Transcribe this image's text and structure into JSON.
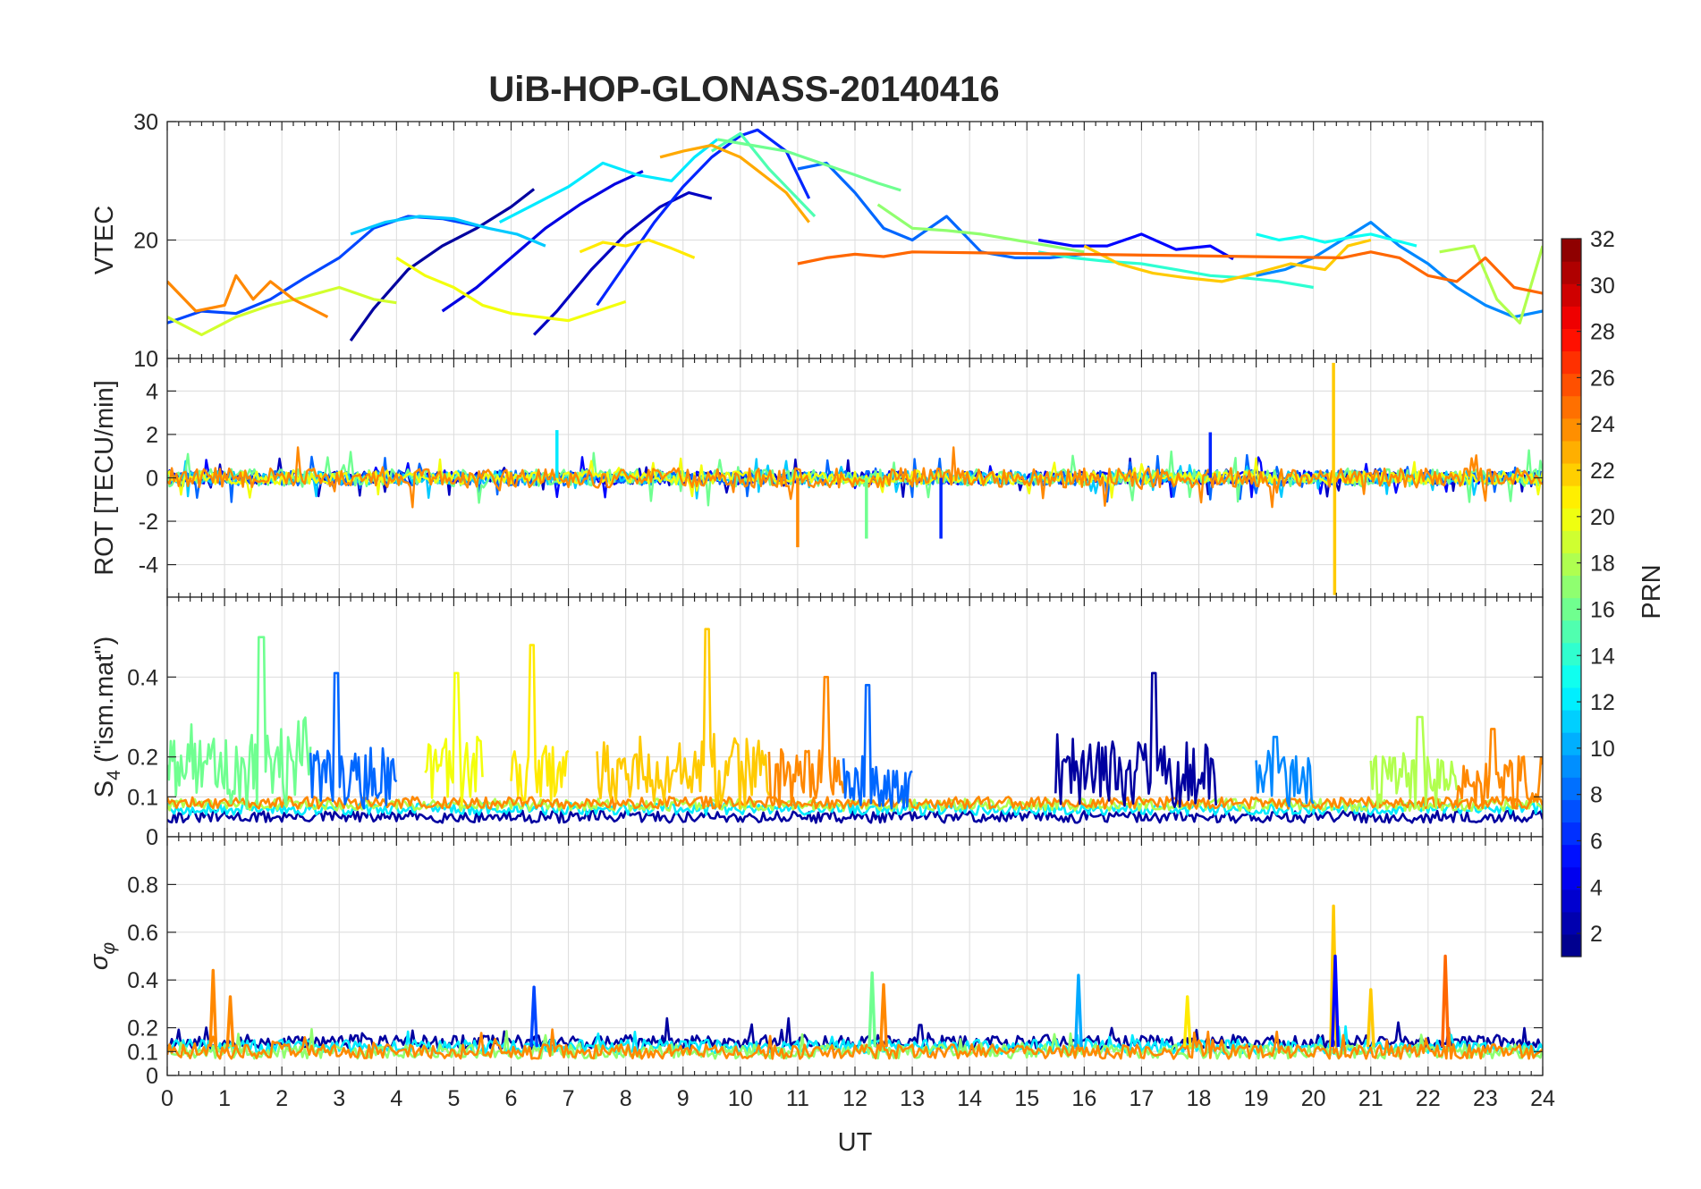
{
  "chart_data": {
    "type": "line",
    "title": "UiB-HOP-GLONASS-20140416",
    "xlabel": "UT",
    "xlim": [
      0,
      24
    ],
    "x_ticks": [
      0,
      1,
      2,
      3,
      4,
      5,
      6,
      7,
      8,
      9,
      10,
      11,
      12,
      13,
      14,
      15,
      16,
      17,
      18,
      19,
      20,
      21,
      22,
      23,
      24
    ],
    "grid": true,
    "panels": [
      {
        "id": "vtec",
        "ylabel": "VTEC",
        "ylim": [
          10,
          30
        ],
        "y_ticks": [
          10,
          20,
          30
        ],
        "ytick_labels": [
          "10",
          "20",
          "30"
        ],
        "series": [
          {
            "prn": 2,
            "x": [
              3.2,
              3.6,
              4.2,
              4.8,
              5.4,
              6.0,
              6.4
            ],
            "y": [
              11.5,
              14.2,
              17.5,
              19.5,
              21.0,
              22.8,
              24.3
            ]
          },
          {
            "prn": 3,
            "x": [
              6.4,
              6.8,
              7.4,
              8.0,
              8.6,
              9.1,
              9.5
            ],
            "y": [
              12.0,
              14.0,
              17.5,
              20.5,
              22.8,
              24.0,
              23.5
            ]
          },
          {
            "prn": 4,
            "x": [
              4.8,
              5.4,
              6.0,
              6.6,
              7.2,
              7.8,
              8.3
            ],
            "y": [
              14.0,
              16.0,
              18.5,
              21.0,
              23.0,
              24.7,
              25.8
            ]
          },
          {
            "prn": 5,
            "x": [
              15.2,
              15.8,
              16.4,
              17.0,
              17.6,
              18.2,
              18.6
            ],
            "y": [
              20.0,
              19.5,
              19.5,
              20.5,
              19.2,
              19.5,
              18.4
            ]
          },
          {
            "prn": 6,
            "x": [
              7.5,
              8.0,
              8.5,
              9.0,
              9.5,
              10.0,
              10.3,
              10.8,
              11.2
            ],
            "y": [
              14.5,
              18.0,
              21.5,
              24.5,
              27.0,
              28.8,
              29.3,
              27.5,
              23.5
            ]
          },
          {
            "prn": 7,
            "x": [
              0.0,
              0.6,
              1.2,
              1.8,
              2.4,
              3.0,
              3.6,
              4.2,
              4.8,
              5.4
            ],
            "y": [
              13.0,
              14.0,
              13.8,
              15.0,
              16.8,
              18.5,
              21.0,
              22.0,
              21.8,
              21.2
            ]
          },
          {
            "prn": 8,
            "x": [
              11.0,
              11.5,
              12.0,
              12.5,
              13.0,
              13.6,
              14.2,
              14.8,
              15.4,
              16.0
            ],
            "y": [
              26.0,
              26.5,
              24.0,
              21.0,
              20.0,
              22.0,
              19.0,
              18.5,
              18.5,
              18.8
            ]
          },
          {
            "prn": 9,
            "x": [
              19.0,
              19.5,
              20.0,
              20.5,
              21.0,
              21.5,
              22.0,
              22.5,
              23.0,
              23.5,
              24.0
            ],
            "y": [
              17.0,
              17.5,
              18.5,
              20.0,
              21.5,
              19.5,
              18.0,
              16.0,
              14.5,
              13.5,
              14.0
            ]
          },
          {
            "prn": 11,
            "x": [
              3.2,
              3.8,
              4.4,
              5.0,
              5.6,
              6.1,
              6.6
            ],
            "y": [
              20.5,
              21.5,
              22.0,
              21.8,
              21.0,
              20.5,
              19.5
            ]
          },
          {
            "prn": 12,
            "x": [
              5.8,
              6.4,
              7.0,
              7.6,
              8.2,
              8.8,
              9.2,
              9.6
            ],
            "y": [
              21.5,
              23.0,
              24.5,
              26.5,
              25.5,
              25.0,
              27.0,
              28.5
            ]
          },
          {
            "prn": 13,
            "x": [
              19.0,
              19.4,
              19.8,
              20.2,
              20.6,
              21.0,
              21.4,
              21.8
            ],
            "y": [
              20.5,
              20.0,
              20.3,
              19.8,
              20.2,
              20.5,
              20.0,
              19.5
            ]
          },
          {
            "prn": 14,
            "x": [
              15.2,
              15.8,
              16.4,
              17.0,
              17.6,
              18.2,
              18.8,
              19.4,
              20.0
            ],
            "y": [
              19.0,
              18.5,
              18.2,
              18.0,
              17.5,
              17.0,
              16.8,
              16.5,
              16.0
            ]
          },
          {
            "prn": 15,
            "x": [
              9.5,
              10.0,
              10.5,
              11.0,
              11.3
            ],
            "y": [
              27.5,
              29.0,
              26.0,
              23.5,
              22.0
            ]
          },
          {
            "prn": 16,
            "x": [
              9.6,
              10.2,
              10.8,
              11.4,
              12.0,
              12.4,
              12.8
            ],
            "y": [
              28.5,
              28.0,
              27.5,
              26.5,
              25.5,
              24.8,
              24.2
            ]
          },
          {
            "prn": 17,
            "x": [
              12.4,
              13.0,
              13.6,
              14.2,
              14.8,
              15.4,
              16.0
            ],
            "y": [
              23.0,
              21.0,
              20.8,
              20.5,
              20.0,
              19.5,
              19.0
            ]
          },
          {
            "prn": 18,
            "x": [
              22.2,
              22.8,
              23.2,
              23.6,
              24.0
            ],
            "y": [
              19.0,
              19.5,
              15.0,
              13.0,
              19.5
            ]
          },
          {
            "prn": 19,
            "x": [
              0.0,
              0.6,
              1.2,
              1.8,
              2.4,
              3.0,
              3.6,
              4.0
            ],
            "y": [
              13.5,
              12.0,
              13.5,
              14.5,
              15.2,
              16.0,
              15.0,
              14.7
            ]
          },
          {
            "prn": 20,
            "x": [
              4.0,
              4.5,
              5.0,
              5.5,
              6.0,
              6.5,
              7.0,
              7.5,
              8.0
            ],
            "y": [
              18.5,
              17.0,
              16.0,
              14.5,
              13.8,
              13.5,
              13.2,
              14.0,
              14.8
            ]
          },
          {
            "prn": 21,
            "x": [
              7.2,
              7.6,
              8.0,
              8.4,
              8.8,
              9.2
            ],
            "y": [
              19.0,
              19.8,
              19.5,
              20.0,
              19.3,
              18.5
            ]
          },
          {
            "prn": 22,
            "x": [
              16.0,
              16.6,
              17.2,
              17.8,
              18.4,
              19.0,
              19.6,
              20.2,
              20.6,
              21.0
            ],
            "y": [
              19.5,
              18.0,
              17.2,
              16.8,
              16.5,
              17.2,
              18.0,
              17.5,
              19.5,
              20.0
            ]
          },
          {
            "prn": 23,
            "x": [
              8.6,
              9.0,
              9.5,
              10.0,
              10.4,
              10.8,
              11.2
            ],
            "y": [
              27.0,
              27.5,
              28.0,
              27.0,
              25.5,
              24.0,
              21.5
            ]
          },
          {
            "prn": 24,
            "x": [
              0.0,
              0.5,
              1.0,
              1.2,
              1.5,
              1.8,
              2.2,
              2.6,
              2.8
            ],
            "y": [
              16.5,
              14.0,
              14.5,
              17.0,
              15.0,
              16.5,
              15.0,
              14.0,
              13.5
            ]
          },
          {
            "prn": 25,
            "x": [
              11.0,
              11.5,
              12.0,
              12.5,
              13.0,
              20.5,
              21.0,
              21.5,
              22.0,
              22.5,
              23.0,
              23.5,
              24.0
            ],
            "y": [
              18.0,
              18.5,
              18.8,
              18.6,
              19.0,
              18.5,
              19.0,
              18.5,
              17.0,
              16.5,
              18.5,
              16.0,
              15.5
            ]
          }
        ]
      },
      {
        "id": "rot",
        "ylabel": "ROT [TECU/min]",
        "ylim": [
          -5.5,
          5.5
        ],
        "y_ticks": [
          -4,
          -2,
          0,
          2,
          4
        ],
        "ytick_labels": [
          "-4",
          "-2",
          "0",
          "2",
          "4"
        ],
        "noise_seed": 17,
        "series_scale": [
          {
            "prn": 3,
            "amp": 0.28
          },
          {
            "prn": 5,
            "amp": 0.3
          },
          {
            "prn": 8,
            "amp": 0.35
          },
          {
            "prn": 11,
            "amp": 0.3
          },
          {
            "prn": 16,
            "amp": 0.4
          },
          {
            "prn": 20,
            "amp": 0.3
          },
          {
            "prn": 24,
            "amp": 0.45
          }
        ],
        "spikes": [
          {
            "prn": 22,
            "x": 20.35,
            "value": 5.3
          },
          {
            "prn": 22,
            "x": 20.37,
            "value": -5.4
          },
          {
            "prn": 24,
            "x": 11.0,
            "value": -3.2
          },
          {
            "prn": 6,
            "x": 13.5,
            "value": -2.8
          },
          {
            "prn": 6,
            "x": 18.2,
            "value": 2.1
          },
          {
            "prn": 12,
            "x": 6.8,
            "value": 2.2
          },
          {
            "prn": 16,
            "x": 12.2,
            "value": -2.8
          }
        ]
      },
      {
        "id": "s4",
        "ylabel": "S4 (\"ism.mat\")",
        "ylabel_main": "S",
        "ylabel_sub": "4",
        "ylabel_rest": " (\"ism.mat\")",
        "ylim": [
          0,
          0.6
        ],
        "y_ticks": [
          0,
          0.1,
          0.2,
          0.4
        ],
        "ytick_labels": [
          "0",
          "0.1",
          "0.2",
          "0.4"
        ],
        "noise_seed": 31,
        "activity": [
          {
            "prn": 16,
            "x0": 0.0,
            "x1": 2.5,
            "level": 0.2,
            "peak": 0.5
          },
          {
            "prn": 8,
            "x0": 2.5,
            "x1": 4.0,
            "level": 0.15,
            "peak": 0.41
          },
          {
            "prn": 20,
            "x0": 4.5,
            "x1": 5.5,
            "level": 0.17,
            "peak": 0.41
          },
          {
            "prn": 21,
            "x0": 6.0,
            "x1": 7.0,
            "level": 0.15,
            "peak": 0.48
          },
          {
            "prn": 22,
            "x0": 7.5,
            "x1": 10.5,
            "level": 0.17,
            "peak": 0.52
          },
          {
            "prn": 24,
            "x0": 10.5,
            "x1": 11.8,
            "level": 0.15,
            "peak": 0.4
          },
          {
            "prn": 8,
            "x0": 11.8,
            "x1": 13.0,
            "level": 0.13,
            "peak": 0.38
          },
          {
            "prn": 2,
            "x0": 15.5,
            "x1": 18.3,
            "level": 0.17,
            "peak": 0.41
          },
          {
            "prn": 9,
            "x0": 19.0,
            "x1": 20.0,
            "level": 0.14,
            "peak": 0.25
          },
          {
            "prn": 18,
            "x0": 21.0,
            "x1": 22.5,
            "level": 0.14,
            "peak": 0.3
          },
          {
            "prn": 24,
            "x0": 22.5,
            "x1": 24.0,
            "level": 0.13,
            "peak": 0.27
          }
        ],
        "baseline": [
          {
            "prn": 2,
            "level": 0.05
          },
          {
            "prn": 12,
            "level": 0.07
          },
          {
            "prn": 18,
            "level": 0.08
          },
          {
            "prn": 24,
            "level": 0.085
          }
        ]
      },
      {
        "id": "sigma_phi",
        "ylabel": "σφ",
        "ylabel_main": "σ",
        "ylabel_sub": "φ",
        "ylim": [
          0,
          1
        ],
        "y_ticks": [
          0,
          0.1,
          0.2,
          0.4,
          0.6,
          0.8
        ],
        "ytick_labels": [
          "0",
          "0.1",
          "0.2",
          "0.4",
          "0.6",
          "0.8"
        ],
        "noise_seed": 53,
        "baseline": [
          {
            "prn": 2,
            "level": 0.14
          },
          {
            "prn": 12,
            "level": 0.12
          },
          {
            "prn": 17,
            "level": 0.1
          },
          {
            "prn": 24,
            "level": 0.1
          }
        ],
        "spikes": [
          {
            "prn": 24,
            "x": 0.8,
            "value": 0.44
          },
          {
            "prn": 24,
            "x": 1.1,
            "value": 0.33
          },
          {
            "prn": 7,
            "x": 6.4,
            "value": 0.37
          },
          {
            "prn": 16,
            "x": 12.3,
            "value": 0.43
          },
          {
            "prn": 24,
            "x": 12.5,
            "value": 0.38
          },
          {
            "prn": 10,
            "x": 15.9,
            "value": 0.42
          },
          {
            "prn": 21,
            "x": 17.8,
            "value": 0.33
          },
          {
            "prn": 22,
            "x": 20.35,
            "value": 0.71
          },
          {
            "prn": 5,
            "x": 20.38,
            "value": 0.5
          },
          {
            "prn": 25,
            "x": 22.3,
            "value": 0.5
          },
          {
            "prn": 22,
            "x": 21.0,
            "value": 0.36
          }
        ]
      }
    ],
    "colorbar": {
      "label": "PRN",
      "colormap": "jet",
      "range": [
        1,
        32
      ],
      "n_levels": 32,
      "ticks": [
        2,
        4,
        6,
        8,
        10,
        12,
        14,
        16,
        18,
        20,
        22,
        24,
        26,
        28,
        30,
        32
      ],
      "tick_labels": [
        "2",
        "4",
        "6",
        "8",
        "10",
        "12",
        "14",
        "16",
        "18",
        "20",
        "22",
        "24",
        "26",
        "28",
        "30",
        "32"
      ]
    }
  }
}
